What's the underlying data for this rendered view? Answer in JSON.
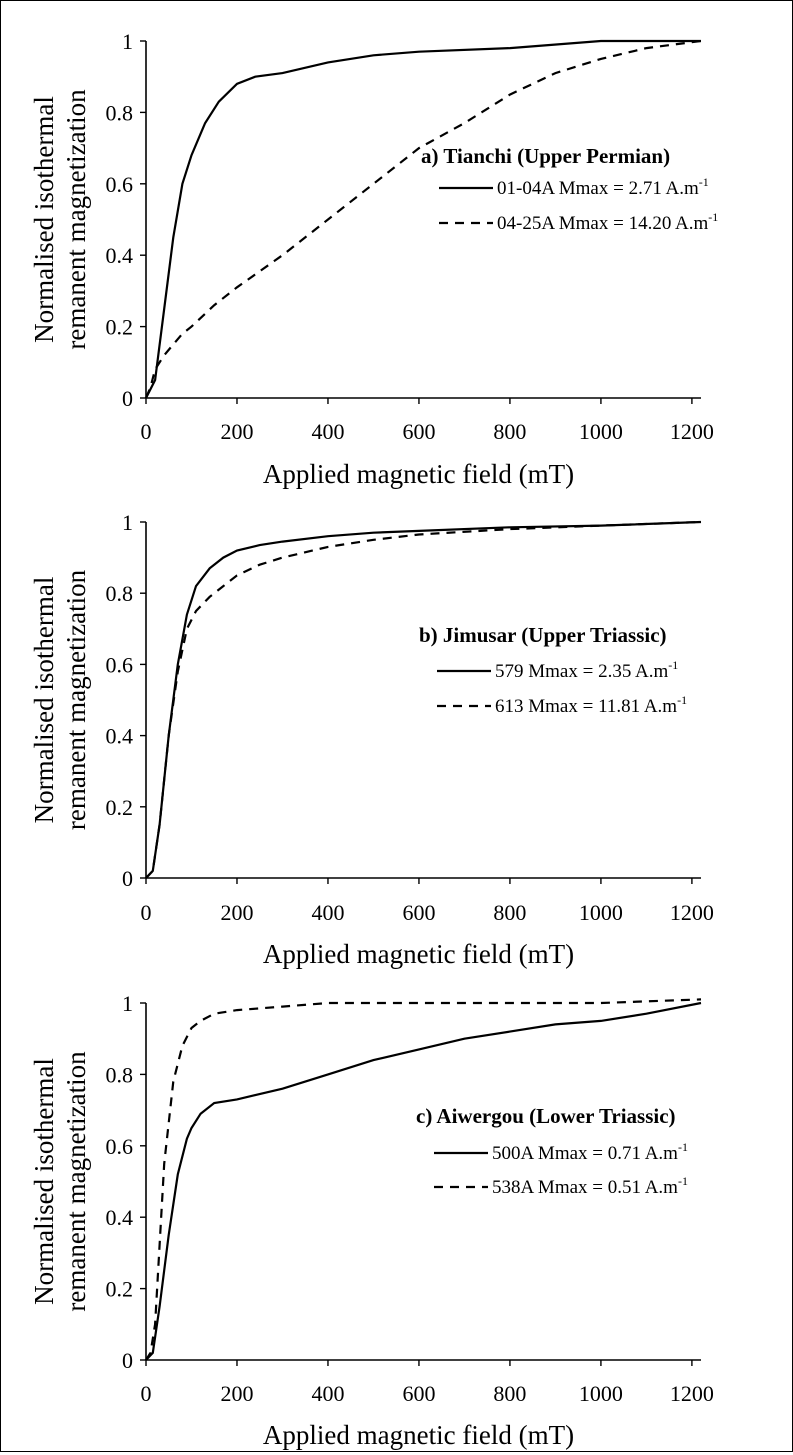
{
  "chart_data": [
    {
      "type": "line",
      "title": "a) Tianchi (Upper Permian)",
      "xlabel": "Applied magnetic field (mT)",
      "ylabel_lines": [
        "Normalised isothermal",
        "remanent magnetization"
      ],
      "xlim": [
        0,
        1220
      ],
      "ylim": [
        0,
        1
      ],
      "x_ticks": [
        "0",
        "200",
        "400",
        "600",
        "800",
        "1000",
        "1200"
      ],
      "y_ticks": [
        "0",
        "0.2",
        "0.4",
        "0.6",
        "0.8",
        "1"
      ],
      "series": [
        {
          "name": "01-04A Mmax = 2.71 A.m",
          "name_sup": "-1",
          "dash": "solid",
          "x": [
            0,
            20,
            40,
            60,
            80,
            100,
            130,
            160,
            200,
            240,
            300,
            400,
            500,
            600,
            800,
            1000,
            1220
          ],
          "y": [
            0,
            0.05,
            0.25,
            0.45,
            0.6,
            0.68,
            0.77,
            0.83,
            0.88,
            0.9,
            0.91,
            0.94,
            0.96,
            0.97,
            0.98,
            1.0,
            1.0
          ]
        },
        {
          "name": "04-25A Mmax = 14.20 A.m",
          "name_sup": "-1",
          "dash": "dashed",
          "x": [
            0,
            10,
            20,
            40,
            60,
            80,
            100,
            150,
            200,
            300,
            400,
            500,
            600,
            700,
            800,
            900,
            1000,
            1100,
            1220
          ],
          "y": [
            0,
            0.03,
            0.08,
            0.12,
            0.15,
            0.18,
            0.2,
            0.26,
            0.31,
            0.4,
            0.5,
            0.6,
            0.7,
            0.77,
            0.85,
            0.91,
            0.95,
            0.98,
            1.0
          ]
        }
      ]
    },
    {
      "type": "line",
      "title": "b) Jimusar (Upper Triassic)",
      "xlabel": "Applied magnetic field (mT)",
      "ylabel_lines": [
        "Normalised isothermal",
        "remanent magnetization"
      ],
      "xlim": [
        0,
        1220
      ],
      "ylim": [
        0,
        1
      ],
      "x_ticks": [
        "0",
        "200",
        "400",
        "600",
        "800",
        "1000",
        "1200"
      ],
      "y_ticks": [
        "0",
        "0.2",
        "0.4",
        "0.6",
        "0.8",
        "1"
      ],
      "series": [
        {
          "name": "579 Mmax = 2.35 A.m",
          "name_sup": "-1",
          "dash": "solid",
          "x": [
            0,
            15,
            30,
            50,
            70,
            90,
            110,
            140,
            170,
            200,
            250,
            300,
            400,
            500,
            600,
            800,
            1000,
            1220
          ],
          "y": [
            0,
            0.02,
            0.15,
            0.4,
            0.6,
            0.74,
            0.82,
            0.87,
            0.9,
            0.92,
            0.935,
            0.945,
            0.96,
            0.97,
            0.975,
            0.985,
            0.99,
            1.0
          ]
        },
        {
          "name": "613 Mmax = 11.81 A.m",
          "name_sup": "-1",
          "dash": "dashed",
          "x": [
            0,
            15,
            30,
            50,
            70,
            90,
            110,
            140,
            170,
            200,
            250,
            300,
            400,
            500,
            600,
            800,
            1000,
            1220
          ],
          "y": [
            0,
            0.02,
            0.15,
            0.4,
            0.58,
            0.7,
            0.75,
            0.79,
            0.82,
            0.85,
            0.88,
            0.9,
            0.93,
            0.95,
            0.965,
            0.98,
            0.99,
            1.0
          ]
        }
      ]
    },
    {
      "type": "line",
      "title": "c) Aiwergou (Lower Triassic)",
      "xlabel": "Applied magnetic field (mT)",
      "ylabel_lines": [
        "Normalised isothermal",
        "remanent magnetization"
      ],
      "xlim": [
        0,
        1220
      ],
      "ylim": [
        0,
        1
      ],
      "x_ticks": [
        "0",
        "200",
        "400",
        "600",
        "800",
        "1000",
        "1200"
      ],
      "y_ticks": [
        "0",
        "0.2",
        "0.4",
        "0.6",
        "0.8",
        "1"
      ],
      "series": [
        {
          "name": "500A Mmax = 0.71 A.m",
          "name_sup": "-1",
          "dash": "solid",
          "x": [
            0,
            15,
            30,
            50,
            70,
            90,
            100,
            120,
            150,
            200,
            300,
            400,
            500,
            600,
            700,
            800,
            900,
            1000,
            1100,
            1220
          ],
          "y": [
            0,
            0.02,
            0.15,
            0.35,
            0.52,
            0.62,
            0.65,
            0.69,
            0.72,
            0.73,
            0.76,
            0.8,
            0.84,
            0.87,
            0.9,
            0.92,
            0.94,
            0.95,
            0.97,
            1.0
          ]
        },
        {
          "name": "538A Mmax = 0.51 A.m",
          "name_sup": "-1",
          "dash": "dashed",
          "x": [
            0,
            10,
            20,
            40,
            60,
            80,
            100,
            120,
            150,
            200,
            300,
            400,
            600,
            800,
            1000,
            1220
          ],
          "y": [
            0,
            0.02,
            0.1,
            0.55,
            0.78,
            0.88,
            0.93,
            0.95,
            0.97,
            0.98,
            0.99,
            1.0,
            1.0,
            1.0,
            1.0,
            1.01
          ]
        }
      ]
    }
  ]
}
